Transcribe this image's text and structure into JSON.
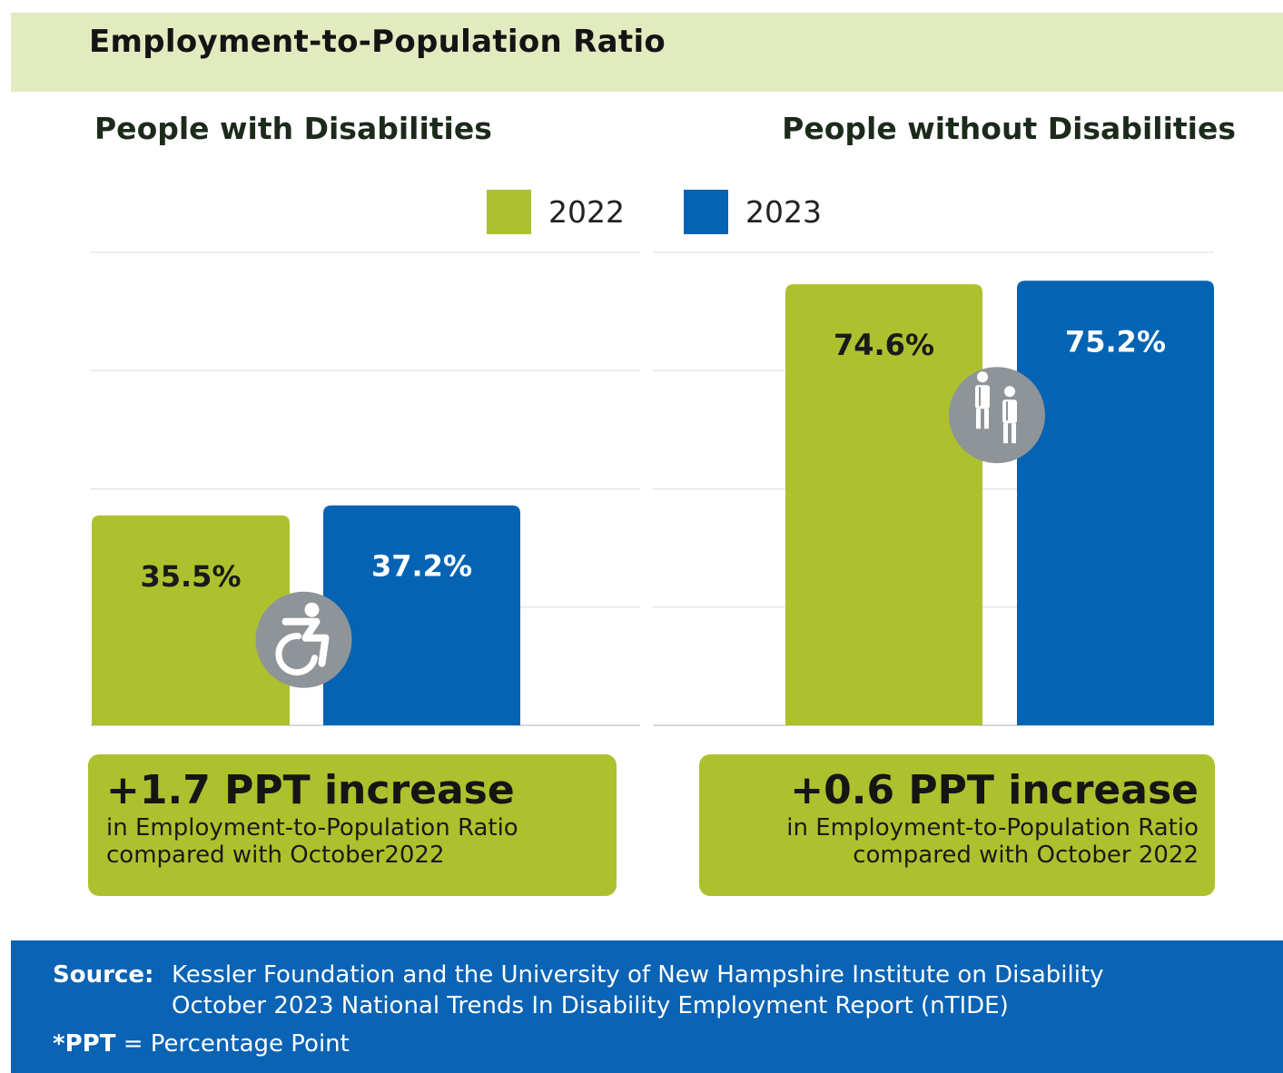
{
  "header": {
    "title": "Employment-to-Population Ratio"
  },
  "colors": {
    "series_2022": "#adc12e",
    "series_2023": "#0563b3",
    "icon_circle": "#8f9498",
    "header_band": "#e2ebbf",
    "footer": "#0a63b4"
  },
  "legend": [
    {
      "label": "2022",
      "color": "#adc12e"
    },
    {
      "label": "2023",
      "color": "#0563b3"
    }
  ],
  "panels": [
    {
      "title": "People with Disabilities",
      "icon": "wheelchair-icon",
      "callout": {
        "headline": "+1.7 PPT increase",
        "line1": "in Employment-to-Population Ratio",
        "line2": "compared with October2022"
      }
    },
    {
      "title": "People without Disabilities",
      "icon": "people-icon",
      "callout": {
        "headline": "+0.6 PPT increase",
        "line1": "in Employment-to-Population Ratio",
        "line2": "compared with October 2022"
      }
    }
  ],
  "chart_data": [
    {
      "type": "bar",
      "title": "People with Disabilities",
      "categories": [
        "2022",
        "2023"
      ],
      "values": [
        35.5,
        37.2
      ],
      "labels": [
        "35.5%",
        "37.2%"
      ],
      "ylim": [
        0,
        80
      ],
      "grid": true
    },
    {
      "type": "bar",
      "title": "People without Disabilities",
      "categories": [
        "2022",
        "2023"
      ],
      "values": [
        74.6,
        75.2
      ],
      "labels": [
        "74.6%",
        "75.2%"
      ],
      "ylim": [
        0,
        80
      ],
      "grid": true
    }
  ],
  "footer": {
    "source_label": "Source:",
    "source_line1": "Kessler Foundation and the University of New Hampshire Institute on Disability",
    "source_line2": "October 2023 National Trends In Disability Employment Report (nTIDE)",
    "ppt_term": "*PPT",
    "ppt_definition": " = Percentage Point"
  }
}
